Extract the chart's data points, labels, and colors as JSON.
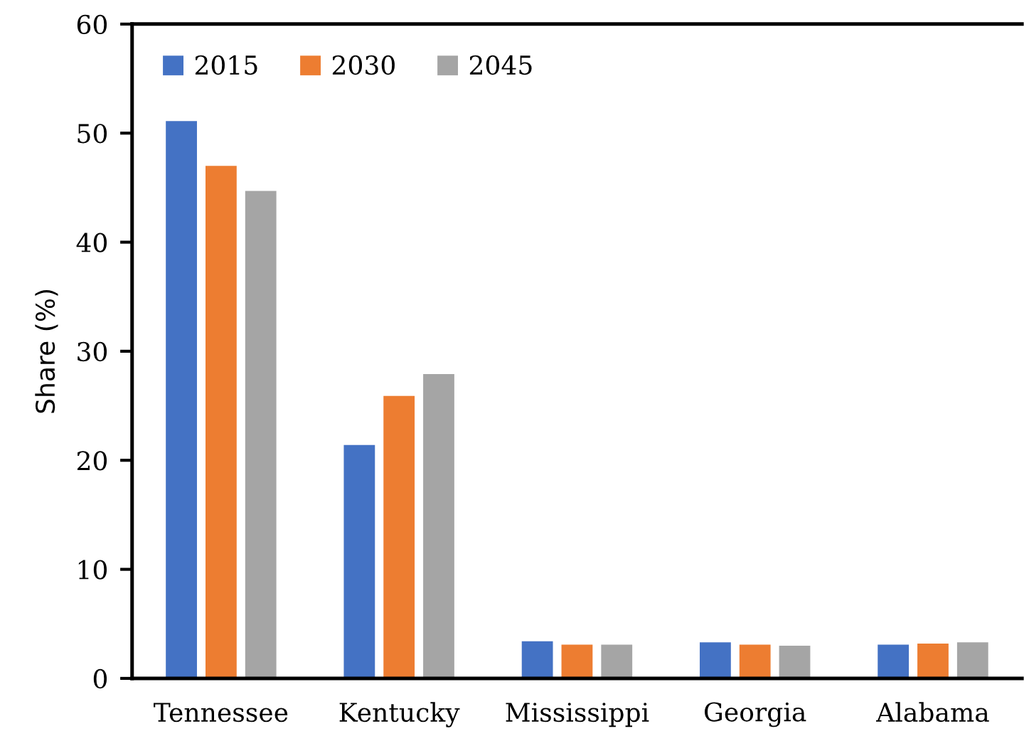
{
  "chart_data": {
    "type": "bar",
    "ylabel": "Share (%)",
    "categories": [
      "Tennessee",
      "Kentucky",
      "Mississippi",
      "Georgia",
      "Alabama"
    ],
    "series": [
      {
        "name": "2015",
        "color": "#4472c4",
        "values": [
          51.1,
          21.4,
          3.4,
          3.3,
          3.1
        ]
      },
      {
        "name": "2030",
        "color": "#ed7d31",
        "values": [
          47.0,
          25.9,
          3.1,
          3.1,
          3.2
        ]
      },
      {
        "name": "2045",
        "color": "#a5a5a5",
        "values": [
          44.7,
          27.9,
          3.1,
          3.0,
          3.3
        ]
      }
    ],
    "ylim": [
      0,
      60
    ],
    "yticks": [
      0,
      10,
      20,
      30,
      40,
      50,
      60
    ],
    "grid": false,
    "legend": "top left"
  }
}
